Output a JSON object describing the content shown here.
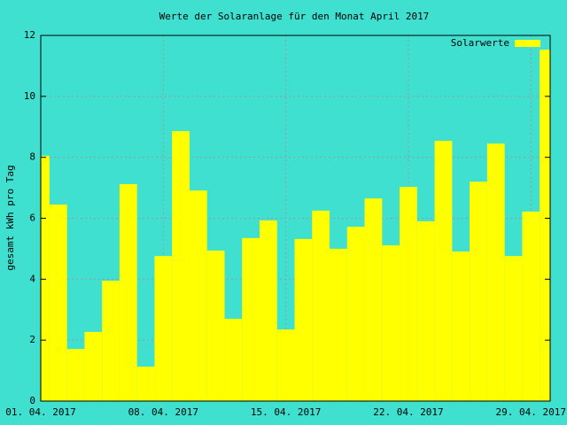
{
  "chart_data": {
    "type": "bar",
    "title": "Werte der Solaranlage für den Monat April 2017",
    "y_label": "gesamt kWh pro Tag",
    "categories": [
      "01. 04. 2017",
      null,
      null,
      null,
      null,
      null,
      null,
      "08. 04. 2017",
      null,
      null,
      null,
      null,
      null,
      null,
      "15. 04. 2017",
      null,
      null,
      null,
      null,
      null,
      null,
      "22. 04. 2017",
      null,
      null,
      null,
      null,
      null,
      null,
      "29. 04. 2017",
      null
    ],
    "series": [
      {
        "name": "Solarwerte",
        "color": "#ffff00",
        "values": [
          8.05,
          6.45,
          1.71,
          2.27,
          3.95,
          7.12,
          1.13,
          4.76,
          8.86,
          6.91,
          4.94,
          2.7,
          5.35,
          5.93,
          2.35,
          5.32,
          6.25,
          5.0,
          5.72,
          6.65,
          5.11,
          7.03,
          5.9,
          8.54,
          4.91,
          7.2,
          8.45,
          4.76,
          6.22,
          11.53
        ]
      }
    ],
    "ylim": [
      0,
      12
    ],
    "yticks": [
      0,
      2,
      4,
      6,
      8,
      10,
      12
    ],
    "grid": true,
    "legend": "top-right",
    "background": "#40e0d0"
  }
}
